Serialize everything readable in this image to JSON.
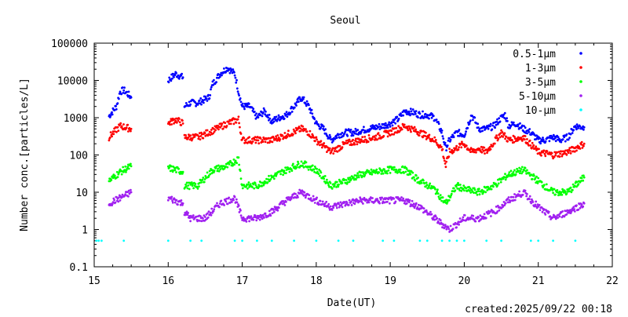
{
  "chart_data": {
    "type": "scatter",
    "title": "Seoul",
    "xlabel": "Date(UT)",
    "ylabel": "Number conc.[particles/L]",
    "footer": "created:2025/09/22 00:18",
    "xlim": [
      15,
      22
    ],
    "ylim": [
      0.1,
      100000
    ],
    "yscale": "log",
    "xticks": [
      "15",
      "16",
      "17",
      "18",
      "19",
      "20",
      "21",
      "22"
    ],
    "yticks": [
      "0.1",
      "1",
      "10",
      "100",
      "1000",
      "10000",
      "100000"
    ],
    "legend_position": "top-right",
    "series": [
      {
        "name": "0.5-1μm",
        "color": "#0000ff",
        "segments": [
          [
            [
              15.2,
              1100
            ],
            [
              15.3,
              2000
            ],
            [
              15.35,
              5000
            ],
            [
              15.4,
              5500
            ],
            [
              15.5,
              3500
            ]
          ],
          [
            [
              16.0,
              10000
            ],
            [
              16.1,
              15000
            ],
            [
              16.2,
              12000
            ]
          ],
          [
            [
              16.22,
              2000
            ],
            [
              16.3,
              2500
            ],
            [
              16.4,
              2500
            ],
            [
              16.55,
              3500
            ],
            [
              16.6,
              8000
            ],
            [
              16.7,
              15000
            ],
            [
              16.8,
              22000
            ],
            [
              16.9,
              15000
            ],
            [
              16.95,
              5000
            ],
            [
              17.0,
              2000
            ],
            [
              17.1,
              2000
            ],
            [
              17.2,
              1000
            ],
            [
              17.3,
              1500
            ],
            [
              17.4,
              800
            ],
            [
              17.5,
              1000
            ],
            [
              17.6,
              1200
            ],
            [
              17.7,
              2000
            ],
            [
              17.8,
              3500
            ],
            [
              17.9,
              2000
            ],
            [
              18.0,
              700
            ],
            [
              18.1,
              500
            ],
            [
              18.2,
              250
            ],
            [
              18.3,
              350
            ],
            [
              18.4,
              400
            ],
            [
              18.5,
              400
            ],
            [
              18.6,
              450
            ],
            [
              18.7,
              500
            ],
            [
              18.8,
              550
            ],
            [
              18.9,
              600
            ],
            [
              19.0,
              700
            ],
            [
              19.1,
              900
            ],
            [
              19.2,
              1500
            ],
            [
              19.3,
              1400
            ],
            [
              19.4,
              1200
            ],
            [
              19.5,
              1200
            ],
            [
              19.6,
              1000
            ],
            [
              19.7,
              400
            ],
            [
              19.75,
              150
            ],
            [
              19.8,
              250
            ],
            [
              19.9,
              400
            ],
            [
              20.0,
              350
            ],
            [
              20.1,
              1200
            ],
            [
              20.2,
              500
            ],
            [
              20.3,
              500
            ],
            [
              20.4,
              600
            ],
            [
              20.5,
              1000
            ],
            [
              20.55,
              1200
            ],
            [
              20.6,
              600
            ],
            [
              20.7,
              700
            ],
            [
              20.8,
              500
            ],
            [
              20.9,
              400
            ],
            [
              21.0,
              250
            ],
            [
              21.1,
              250
            ],
            [
              21.2,
              300
            ],
            [
              21.3,
              250
            ],
            [
              21.4,
              300
            ],
            [
              21.5,
              600
            ],
            [
              21.62,
              550
            ]
          ]
        ]
      },
      {
        "name": "1-3μm",
        "color": "#ff0000",
        "segments": [
          [
            [
              15.2,
              300
            ],
            [
              15.35,
              600
            ],
            [
              15.5,
              500
            ]
          ],
          [
            [
              16.0,
              700
            ],
            [
              16.1,
              900
            ],
            [
              16.2,
              700
            ]
          ],
          [
            [
              16.22,
              300
            ],
            [
              16.4,
              300
            ],
            [
              16.6,
              450
            ],
            [
              16.8,
              700
            ],
            [
              16.95,
              900
            ],
            [
              17.0,
              250
            ],
            [
              17.2,
              250
            ],
            [
              17.4,
              250
            ],
            [
              17.6,
              350
            ],
            [
              17.8,
              500
            ],
            [
              17.9,
              400
            ],
            [
              18.0,
              250
            ],
            [
              18.2,
              120
            ],
            [
              18.4,
              200
            ],
            [
              18.6,
              250
            ],
            [
              18.8,
              300
            ],
            [
              19.0,
              400
            ],
            [
              19.2,
              600
            ],
            [
              19.4,
              400
            ],
            [
              19.6,
              250
            ],
            [
              19.7,
              150
            ],
            [
              19.75,
              50
            ],
            [
              19.8,
              120
            ],
            [
              20.0,
              200
            ],
            [
              20.1,
              120
            ],
            [
              20.2,
              150
            ],
            [
              20.3,
              120
            ],
            [
              20.5,
              400
            ],
            [
              20.6,
              250
            ],
            [
              20.8,
              300
            ],
            [
              21.0,
              120
            ],
            [
              21.2,
              100
            ],
            [
              21.4,
              120
            ],
            [
              21.62,
              200
            ]
          ]
        ]
      },
      {
        "name": "3-5μm",
        "color": "#00ff00",
        "segments": [
          [
            [
              15.2,
              20
            ],
            [
              15.35,
              35
            ],
            [
              15.5,
              50
            ]
          ],
          [
            [
              16.0,
              45
            ],
            [
              16.1,
              40
            ],
            [
              16.2,
              35
            ]
          ],
          [
            [
              16.22,
              15
            ],
            [
              16.4,
              15
            ],
            [
              16.6,
              40
            ],
            [
              16.8,
              50
            ],
            [
              16.95,
              80
            ],
            [
              17.0,
              15
            ],
            [
              17.2,
              15
            ],
            [
              17.4,
              25
            ],
            [
              17.6,
              40
            ],
            [
              17.8,
              60
            ],
            [
              18.0,
              40
            ],
            [
              18.2,
              15
            ],
            [
              18.4,
              20
            ],
            [
              18.6,
              30
            ],
            [
              18.8,
              35
            ],
            [
              19.0,
              40
            ],
            [
              19.2,
              40
            ],
            [
              19.4,
              20
            ],
            [
              19.6,
              12
            ],
            [
              19.75,
              5
            ],
            [
              19.9,
              15
            ],
            [
              20.0,
              12
            ],
            [
              20.2,
              10
            ],
            [
              20.4,
              15
            ],
            [
              20.6,
              30
            ],
            [
              20.8,
              40
            ],
            [
              21.0,
              20
            ],
            [
              21.2,
              10
            ],
            [
              21.4,
              10
            ],
            [
              21.62,
              25
            ]
          ]
        ]
      },
      {
        "name": "5-10μm",
        "color": "#a020f0",
        "segments": [
          [
            [
              15.2,
              5
            ],
            [
              15.35,
              7
            ],
            [
              15.5,
              10
            ]
          ],
          [
            [
              16.0,
              7
            ],
            [
              16.2,
              5
            ]
          ],
          [
            [
              16.22,
              3
            ],
            [
              16.3,
              2
            ],
            [
              16.5,
              2
            ],
            [
              16.7,
              5
            ],
            [
              16.9,
              7
            ],
            [
              17.0,
              2
            ],
            [
              17.2,
              2
            ],
            [
              17.4,
              3
            ],
            [
              17.6,
              6
            ],
            [
              17.8,
              10
            ],
            [
              18.0,
              6
            ],
            [
              18.2,
              4
            ],
            [
              18.4,
              5
            ],
            [
              18.6,
              6
            ],
            [
              18.8,
              6
            ],
            [
              19.0,
              6
            ],
            [
              19.2,
              6
            ],
            [
              19.4,
              4
            ],
            [
              19.6,
              2
            ],
            [
              19.8,
              1
            ],
            [
              20.0,
              2
            ],
            [
              20.2,
              2
            ],
            [
              20.4,
              3
            ],
            [
              20.6,
              6
            ],
            [
              20.8,
              10
            ],
            [
              21.0,
              4
            ],
            [
              21.2,
              2
            ],
            [
              21.4,
              3
            ],
            [
              21.62,
              5
            ]
          ]
        ]
      },
      {
        "name": "10-μm",
        "color": "#00ffff",
        "points": [
          [
            15.03,
            0.5
          ],
          [
            15.06,
            0.5
          ],
          [
            15.1,
            0.5
          ],
          [
            15.4,
            0.5
          ],
          [
            16.0,
            0.5
          ],
          [
            16.3,
            0.5
          ],
          [
            16.45,
            0.5
          ],
          [
            16.9,
            0.5
          ],
          [
            17.0,
            0.5
          ],
          [
            17.2,
            0.5
          ],
          [
            17.4,
            0.5
          ],
          [
            17.7,
            0.5
          ],
          [
            18.0,
            0.5
          ],
          [
            18.3,
            0.5
          ],
          [
            18.5,
            0.5
          ],
          [
            18.9,
            0.5
          ],
          [
            19.05,
            0.5
          ],
          [
            19.4,
            0.5
          ],
          [
            19.5,
            0.5
          ],
          [
            19.7,
            0.5
          ],
          [
            19.8,
            0.5
          ],
          [
            19.9,
            0.5
          ],
          [
            20.0,
            0.5
          ],
          [
            20.3,
            0.5
          ],
          [
            20.5,
            0.5
          ],
          [
            20.9,
            0.5
          ],
          [
            21.0,
            0.5
          ],
          [
            21.2,
            0.5
          ],
          [
            21.5,
            0.5
          ]
        ]
      }
    ]
  }
}
